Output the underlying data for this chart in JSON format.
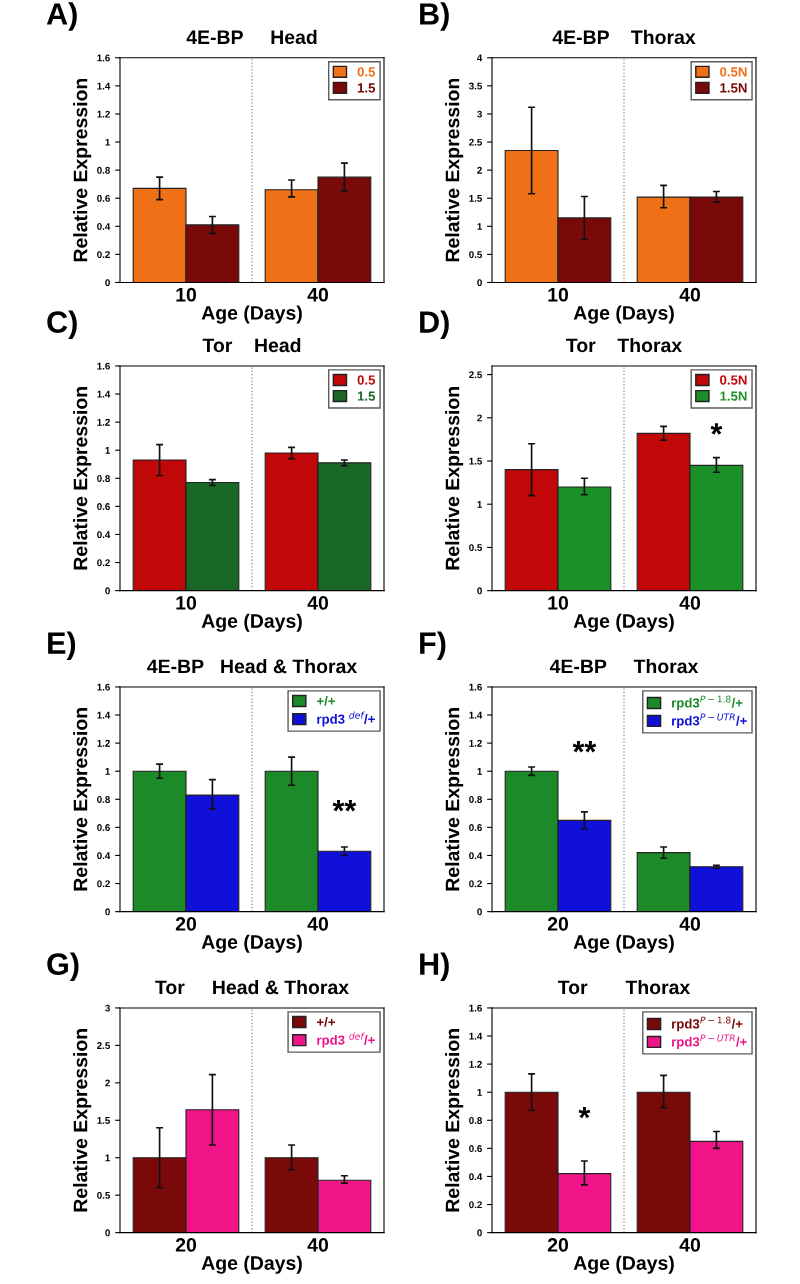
{
  "chart_data": [
    {
      "type": "bar",
      "title": "4E-BP     Head",
      "annotations": [
        "A)"
      ],
      "xlabel": "Age (Days)",
      "ylabel": "Relative Expression",
      "categories": [
        "10",
        "40"
      ],
      "ylim": [
        0,
        1.6
      ],
      "yticks": [
        0,
        0.2,
        0.4,
        0.6,
        0.8,
        1,
        1.2,
        1.4,
        1.6
      ],
      "legend": "top right",
      "series": [
        {
          "name": "0.5",
          "color": "#f07018",
          "values": [
            0.67,
            0.66
          ],
          "errors": [
            [
              0.59,
              0.75
            ],
            [
              0.61,
              0.73
            ]
          ]
        },
        {
          "name": "1.5",
          "color": "#7a0a0a",
          "values": [
            0.41,
            0.75
          ],
          "errors": [
            [
              0.35,
              0.47
            ],
            [
              0.65,
              0.85
            ]
          ]
        }
      ]
    },
    {
      "type": "bar",
      "title": "4E-BP    Thorax",
      "annotations": [
        "B)"
      ],
      "xlabel": "Age (Days)",
      "ylabel": "Relative Expression",
      "categories": [
        "10",
        "40"
      ],
      "ylim": [
        0,
        4
      ],
      "yticks": [
        0,
        0.5,
        1,
        1.5,
        2,
        2.5,
        3,
        3.5,
        4
      ],
      "legend": "top right",
      "series": [
        {
          "name": "0.5N",
          "color": "#f07018",
          "values": [
            2.35,
            1.52
          ],
          "errors": [
            [
              1.58,
              3.12
            ],
            [
              1.33,
              1.73
            ]
          ]
        },
        {
          "name": "1.5N",
          "color": "#7a0a0a",
          "values": [
            1.15,
            1.52
          ],
          "errors": [
            [
              0.77,
              1.53
            ],
            [
              1.43,
              1.62
            ]
          ]
        }
      ]
    },
    {
      "type": "bar",
      "title": "Tor    Head",
      "annotations": [
        "C)"
      ],
      "xlabel": "Age (Days)",
      "ylabel": "Relative Expression",
      "categories": [
        "10",
        "40"
      ],
      "ylim": [
        0,
        1.6
      ],
      "yticks": [
        0,
        0.2,
        0.4,
        0.6,
        0.8,
        1,
        1.2,
        1.4,
        1.6
      ],
      "legend": "top right",
      "series": [
        {
          "name": "0.5",
          "color": "#c00808",
          "values": [
            0.93,
            0.98
          ],
          "errors": [
            [
              0.82,
              1.04
            ],
            [
              0.94,
              1.02
            ]
          ]
        },
        {
          "name": "1.5",
          "color": "#1a6828",
          "values": [
            0.77,
            0.91
          ],
          "errors": [
            [
              0.75,
              0.79
            ],
            [
              0.89,
              0.93
            ]
          ]
        }
      ]
    },
    {
      "type": "bar",
      "title": "Tor    Thorax",
      "annotations": [
        "D)",
        {
          "text": "*",
          "x": "40",
          "y": 1.62
        }
      ],
      "xlabel": "Age (Days)",
      "ylabel": "Relative Expression",
      "categories": [
        "10",
        "40"
      ],
      "ylim": [
        0,
        2.6
      ],
      "yticks": [
        0,
        0.5,
        1,
        1.5,
        2,
        2.5
      ],
      "legend": "top right",
      "series": [
        {
          "name": "0.5N",
          "color": "#c00808",
          "values": [
            1.4,
            1.82
          ],
          "errors": [
            [
              1.1,
              1.7
            ],
            [
              1.74,
              1.9
            ]
          ]
        },
        {
          "name": "1.5N",
          "color": "#1c9028",
          "values": [
            1.2,
            1.45
          ],
          "errors": [
            [
              1.11,
              1.3
            ],
            [
              1.37,
              1.54
            ]
          ]
        }
      ]
    },
    {
      "type": "bar",
      "title": "4E-BP   Head & Thorax",
      "annotations": [
        "E)",
        {
          "text": "**",
          "x": "40",
          "y": 0.6
        }
      ],
      "xlabel": "Age (Days)",
      "ylabel": "Relative Expression",
      "categories": [
        "20",
        "40"
      ],
      "ylim": [
        0,
        1.6
      ],
      "yticks": [
        0,
        0.2,
        0.4,
        0.6,
        0.8,
        1,
        1.2,
        1.4,
        1.6
      ],
      "legend": "top right",
      "series": [
        {
          "name": "+/+",
          "color": "#1c8a28",
          "values": [
            1.0,
            1.0
          ],
          "errors": [
            [
              0.95,
              1.05
            ],
            [
              0.9,
              1.1
            ]
          ]
        },
        {
          "name": "rpd3 $^{def}$/+",
          "color": "#1010d8",
          "values": [
            0.83,
            0.43
          ],
          "errors": [
            [
              0.73,
              0.94
            ],
            [
              0.4,
              0.46
            ]
          ]
        }
      ]
    },
    {
      "type": "bar",
      "title": "4E-BP     Thorax",
      "annotations": [
        "F)",
        {
          "text": "**",
          "x": "20",
          "y": 1.02
        }
      ],
      "xlabel": "Age (Days)",
      "ylabel": "Relative Expression",
      "categories": [
        "20",
        "40"
      ],
      "ylim": [
        0,
        1.6
      ],
      "yticks": [
        0,
        0.2,
        0.4,
        0.6,
        0.8,
        1,
        1.2,
        1.4,
        1.6
      ],
      "legend": "top right",
      "series": [
        {
          "name": "rpd3$^{P−1.8}$/+",
          "color": "#1c8a28",
          "values": [
            1.0,
            0.42
          ],
          "errors": [
            [
              0.97,
              1.03
            ],
            [
              0.38,
              0.46
            ]
          ]
        },
        {
          "name": "rpd3$^{P−UTR}$/+",
          "color": "#1010d8",
          "values": [
            0.65,
            0.32
          ],
          "errors": [
            [
              0.59,
              0.71
            ],
            [
              0.31,
              0.33
            ]
          ]
        }
      ]
    },
    {
      "type": "bar",
      "title": "Tor     Head & Thorax",
      "annotations": [
        "G)"
      ],
      "xlabel": "Age (Days)",
      "ylabel": "Relative Expression",
      "categories": [
        "20",
        "40"
      ],
      "ylim": [
        0,
        3
      ],
      "yticks": [
        0,
        0.5,
        1,
        1.5,
        2,
        2.5,
        3
      ],
      "legend": "top right",
      "series": [
        {
          "name": "+/+",
          "color": "#7a0a0a",
          "values": [
            1.0,
            1.0
          ],
          "errors": [
            [
              0.6,
              1.4
            ],
            [
              0.84,
              1.17
            ]
          ]
        },
        {
          "name": "rpd3 $^{def}$/+",
          "color": "#f01488",
          "values": [
            1.64,
            0.7
          ],
          "errors": [
            [
              1.17,
              2.11
            ],
            [
              0.66,
              0.76
            ]
          ]
        }
      ]
    },
    {
      "type": "bar",
      "title": "Tor       Thorax",
      "annotations": [
        "H)",
        {
          "text": "*",
          "x": "20",
          "y": 0.7
        }
      ],
      "xlabel": "Age (Days)",
      "ylabel": "Relative Expression",
      "categories": [
        "20",
        "40"
      ],
      "ylim": [
        0,
        1.6
      ],
      "yticks": [
        0,
        0.2,
        0.4,
        0.6,
        0.8,
        1,
        1.2,
        1.4,
        1.6
      ],
      "legend": "top right",
      "series": [
        {
          "name": "rpd3$^{P−1.8}$/+",
          "color": "#7a0a0a",
          "values": [
            1.0,
            1.0
          ],
          "errors": [
            [
              0.87,
              1.13
            ],
            [
              0.89,
              1.12
            ]
          ]
        },
        {
          "name": "rpd3$^{P−UTR}$/+",
          "color": "#f01488",
          "values": [
            0.42,
            0.65
          ],
          "errors": [
            [
              0.34,
              0.51
            ],
            [
              0.6,
              0.72
            ]
          ]
        }
      ]
    }
  ]
}
